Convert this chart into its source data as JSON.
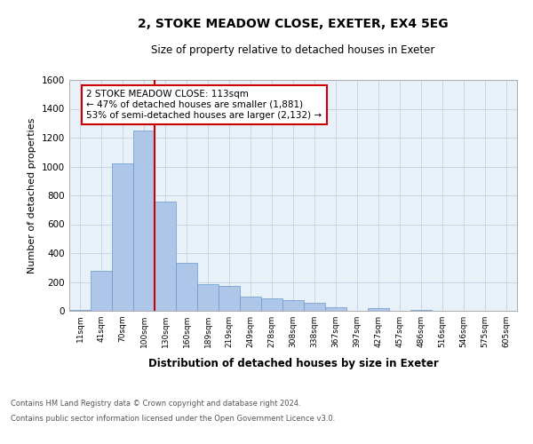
{
  "title1": "2, STOKE MEADOW CLOSE, EXETER, EX4 5EG",
  "title2": "Size of property relative to detached houses in Exeter",
  "xlabel": "Distribution of detached houses by size in Exeter",
  "ylabel": "Number of detached properties",
  "bin_labels": [
    "11sqm",
    "41sqm",
    "70sqm",
    "100sqm",
    "130sqm",
    "160sqm",
    "189sqm",
    "219sqm",
    "249sqm",
    "278sqm",
    "308sqm",
    "338sqm",
    "367sqm",
    "397sqm",
    "427sqm",
    "457sqm",
    "486sqm",
    "516sqm",
    "546sqm",
    "575sqm",
    "605sqm"
  ],
  "bar_heights": [
    5,
    275,
    1020,
    1250,
    755,
    330,
    185,
    170,
    100,
    85,
    75,
    55,
    22,
    0,
    18,
    0,
    5,
    0,
    3,
    0,
    0
  ],
  "bar_color": "#aec6e8",
  "bar_edge_color": "#6699cc",
  "bar_alpha": 1.0,
  "grid_color": "#c8d4e8",
  "background_color": "#e8f0f8",
  "marker_bin_index": 3,
  "marker_line_color": "#cc0000",
  "annotation_text": "2 STOKE MEADOW CLOSE: 113sqm\n← 47% of detached houses are smaller (1,881)\n53% of semi-detached houses are larger (2,132) →",
  "annotation_box_color": "#ffffff",
  "annotation_border_color": "#cc0000",
  "ylim": [
    0,
    1600
  ],
  "yticks": [
    0,
    200,
    400,
    600,
    800,
    1000,
    1200,
    1400,
    1600
  ],
  "footer1": "Contains HM Land Registry data © Crown copyright and database right 2024.",
  "footer2": "Contains public sector information licensed under the Open Government Licence v3.0."
}
